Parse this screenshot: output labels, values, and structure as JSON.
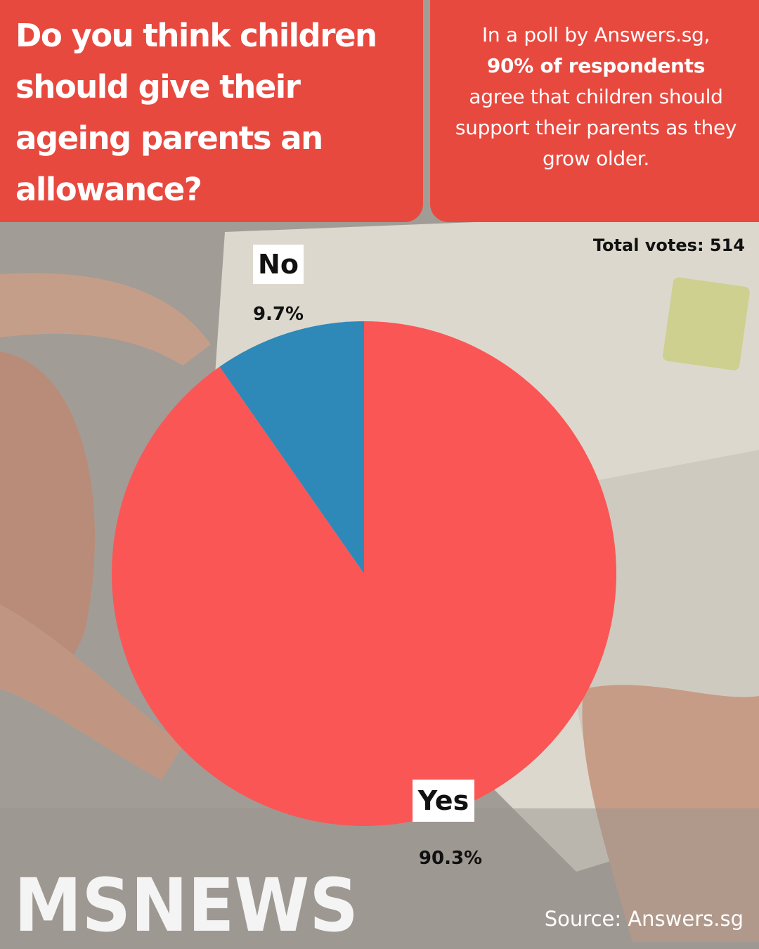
{
  "header": {
    "question": "Do you think children should give their ageing parents an allowance?",
    "blurb_pre": "In a poll by Answers.sg,",
    "blurb_bold": "90% of respondents",
    "blurb_post": "agree that children should support their parents as they grow older."
  },
  "total_votes": "Total votes: 514",
  "chart_data": {
    "type": "pie",
    "categories": [
      "No",
      "Yes"
    ],
    "values": [
      9.7,
      90.3
    ],
    "value_labels": [
      "9.7%",
      "90.3%"
    ],
    "colors": [
      "#2e88b8",
      "#fa5656"
    ],
    "start": "top, clockwise from 12 o'clock"
  },
  "brand": {
    "logo_text": "MSNEWS"
  },
  "source": "Source: Answers.sg"
}
